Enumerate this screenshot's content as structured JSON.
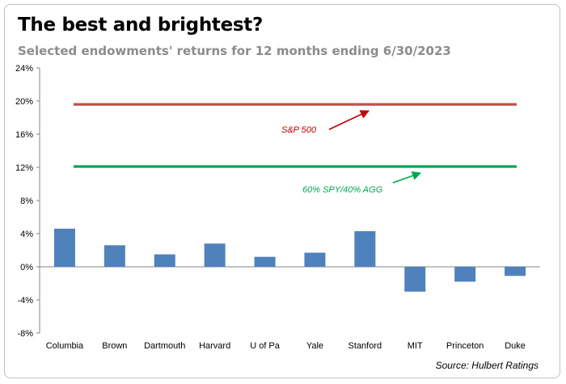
{
  "chart_data": {
    "type": "bar",
    "title": "The best and brightest?",
    "subtitle": "Selected endowments' returns for 12 months ending 6/30/2023",
    "source": "Source: Hulbert Ratings",
    "categories": [
      "Columbia",
      "Brown",
      "Dartmouth",
      "Harvard",
      "U of Pa",
      "Yale",
      "Stanford",
      "MIT",
      "Princeton",
      "Duke"
    ],
    "values": [
      4.6,
      2.6,
      1.5,
      2.8,
      1.2,
      1.7,
      4.3,
      -3.0,
      -1.8,
      -1.1
    ],
    "ylim": [
      -8,
      24
    ],
    "yticks": [
      -8,
      -4,
      0,
      4,
      8,
      12,
      16,
      20,
      24
    ],
    "ytick_labels": [
      "-8%",
      "-4%",
      "0%",
      "4%",
      "8%",
      "12%",
      "16%",
      "20%",
      "24%"
    ],
    "bar_color": "#4f81bd",
    "reference_lines": [
      {
        "name": "S&P 500",
        "value": 19.6,
        "color": "#c0504d"
      },
      {
        "name": "60% SPY/40% AGG",
        "value": 12.1,
        "color": "#00a651"
      }
    ]
  }
}
